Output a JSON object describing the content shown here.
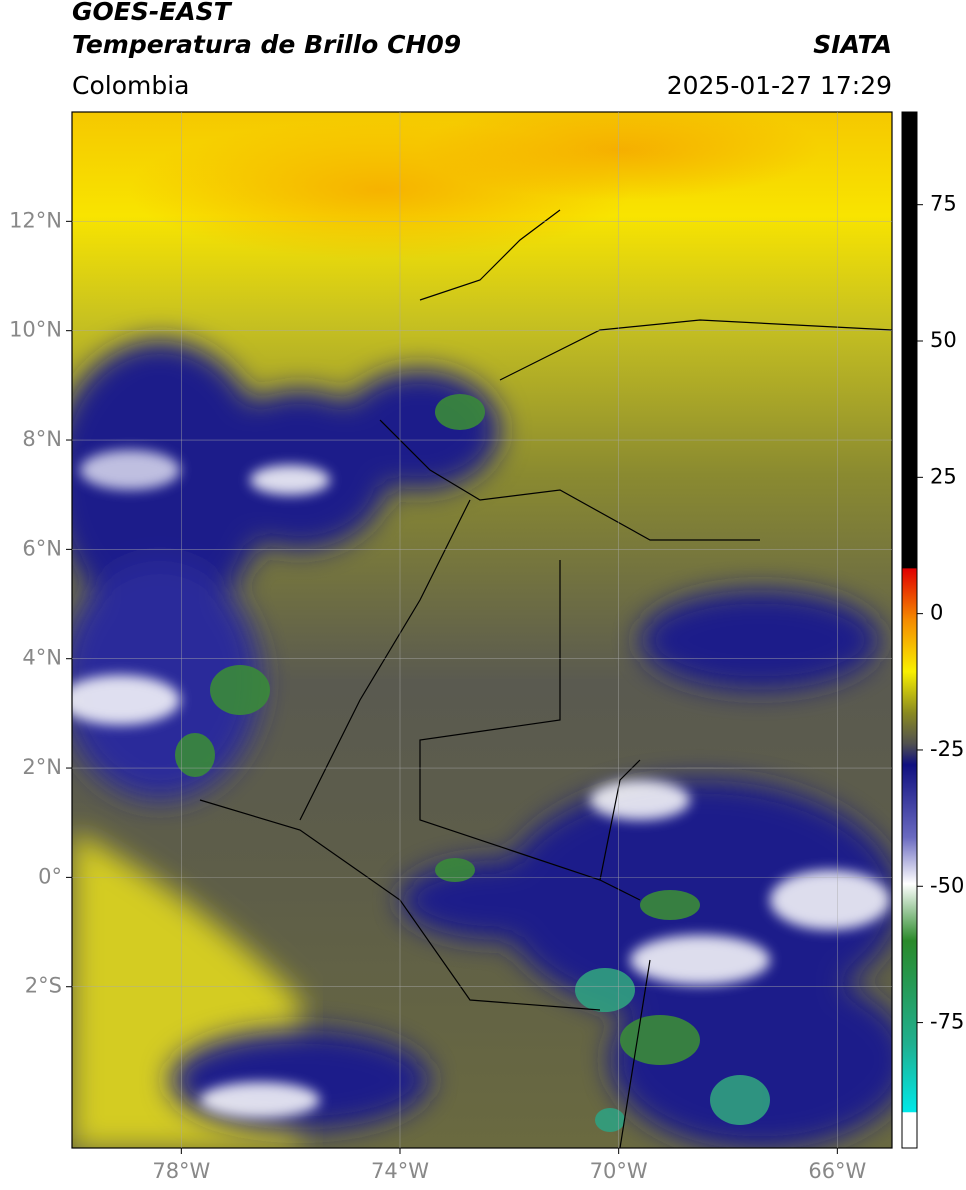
{
  "header": {
    "title": "GOES-EAST",
    "subtitle": "Temperatura de Brillo CH09",
    "source": "SIATA",
    "region": "Colombia",
    "datetime": "2025-01-27 17:29"
  },
  "map": {
    "xlim": [
      -80,
      -65
    ],
    "ylim": [
      -4.95,
      14
    ],
    "xticks": [
      {
        "value": -78,
        "label": "78°W"
      },
      {
        "value": -74,
        "label": "74°W"
      },
      {
        "value": -70,
        "label": "70°W"
      },
      {
        "value": -66,
        "label": "66°W"
      }
    ],
    "yticks": [
      {
        "value": 12,
        "label": "12°N"
      },
      {
        "value": 10,
        "label": "10°N"
      },
      {
        "value": 8,
        "label": "8°N"
      },
      {
        "value": 6,
        "label": "6°N"
      },
      {
        "value": 4,
        "label": "4°N"
      },
      {
        "value": 2,
        "label": "2°N"
      },
      {
        "value": 0,
        "label": "0°"
      },
      {
        "value": -2,
        "label": "2°S"
      }
    ],
    "grid": true
  },
  "colorbar": {
    "lim": [
      -98,
      92
    ],
    "ticks": [
      75,
      50,
      25,
      0,
      -25,
      -50,
      -75
    ]
  }
}
